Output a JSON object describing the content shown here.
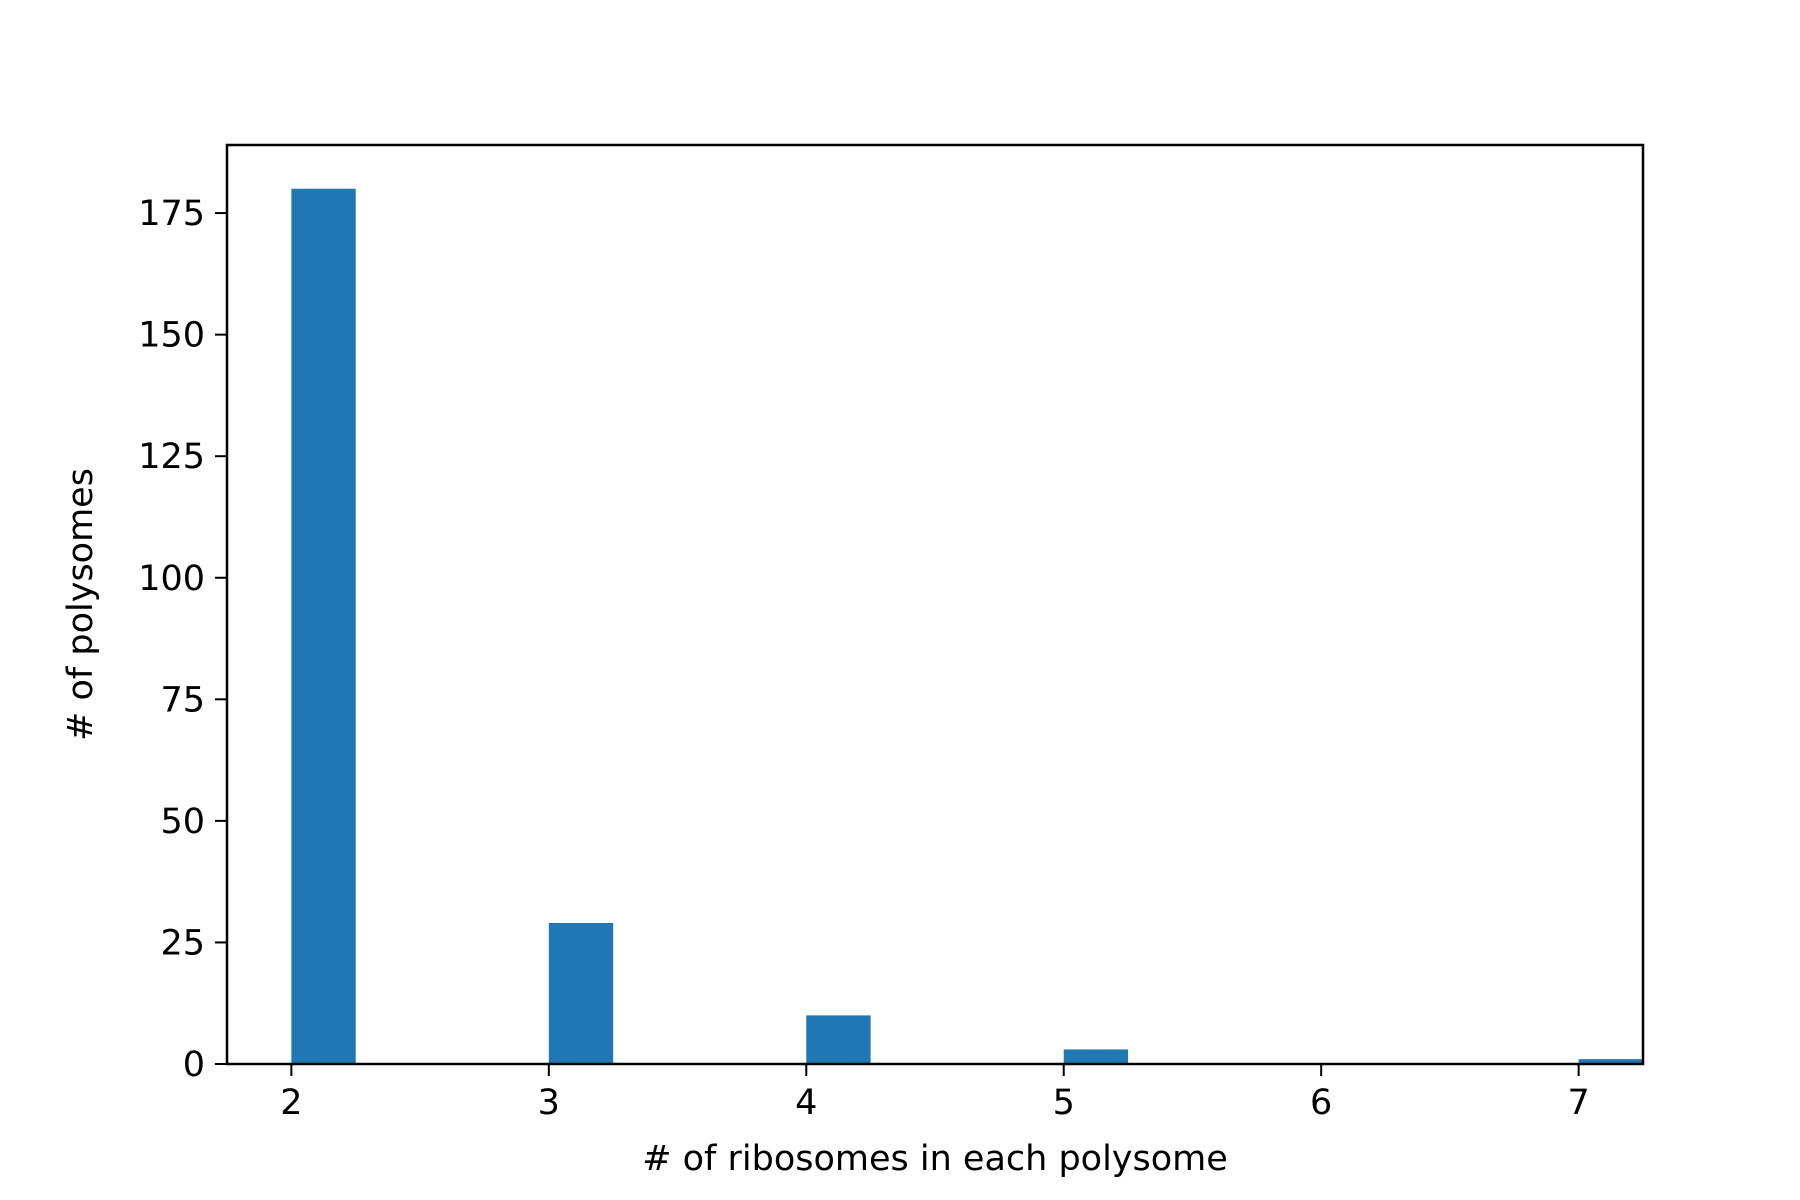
{
  "colors": {
    "bar": "#1f77b4",
    "axis": "#000000",
    "background": "#ffffff"
  },
  "chart_data": {
    "type": "bar",
    "title": "",
    "xlabel": "# of ribosomes in each polysome",
    "ylabel": "# of polysomes",
    "bins": [
      {
        "x": 2,
        "value": 180
      },
      {
        "x": 3,
        "value": 29
      },
      {
        "x": 4,
        "value": 10
      },
      {
        "x": 5,
        "value": 3
      },
      {
        "x": 6,
        "value": 0
      },
      {
        "x": 7,
        "value": 1
      }
    ],
    "bar_width": 0.25,
    "xlim": [
      1.75,
      7.25
    ],
    "ylim": [
      0,
      189
    ],
    "xticks": [
      2,
      3,
      4,
      5,
      6,
      7
    ],
    "xtick_labels": [
      "2",
      "3",
      "4",
      "5",
      "6",
      "7"
    ],
    "yticks": [
      0,
      25,
      50,
      75,
      100,
      125,
      150,
      175
    ],
    "ytick_labels": [
      "0",
      "25",
      "50",
      "75",
      "100",
      "125",
      "150",
      "175"
    ],
    "grid": false,
    "legend": "none"
  }
}
